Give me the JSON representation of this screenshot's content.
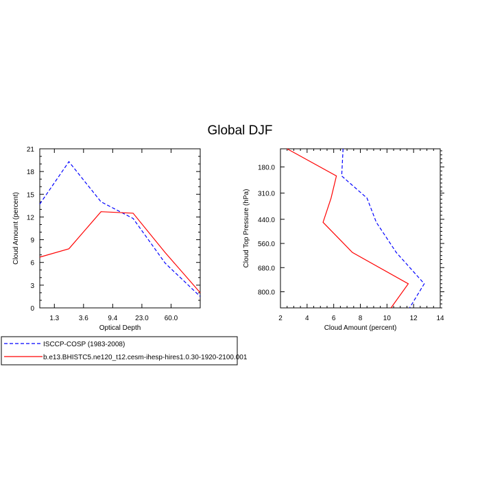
{
  "title": "Global DJF",
  "colors": {
    "obs": "#0000ff",
    "model": "#ff0000",
    "axis": "#000000"
  },
  "chart_data": [
    {
      "type": "line",
      "xlabel": "Optical Depth",
      "ylabel": "Cloud Amount (percent)",
      "x_tick_labels": [
        "1.3",
        "3.6",
        "9.4",
        "23.0",
        "60.0"
      ],
      "xlim": [
        0,
        5.5
      ],
      "ylim": [
        0,
        21
      ],
      "y_ticks": [
        0,
        3,
        6,
        9,
        12,
        15,
        18,
        21
      ],
      "series": [
        {
          "name": "ISCCP-COSP (1983-2008)",
          "style": "dashed",
          "x": [
            0,
            1,
            2.1,
            3.2,
            4.3,
            5.5
          ],
          "y": [
            13.7,
            19.3,
            14.0,
            11.8,
            5.9,
            1.5
          ]
        },
        {
          "name": "b.e13.BHISTC5.ne120_t12.cesm-ihesp-hires1.0.30-1920-2100.001",
          "style": "solid",
          "x": [
            0,
            1,
            2.1,
            3.2,
            4.3,
            5.5
          ],
          "y": [
            6.7,
            7.8,
            12.7,
            12.5,
            7.3,
            2.0
          ]
        }
      ]
    },
    {
      "type": "line",
      "xlabel": "Cloud Amount (percent)",
      "ylabel": "Cloud Top Pressure (hPa)",
      "x_ticks": [
        2,
        4,
        6,
        8,
        10,
        12,
        14
      ],
      "xlim": [
        2,
        14
      ],
      "ylim": [
        90,
        880
      ],
      "y_ticks": [
        180,
        310,
        440,
        560,
        680,
        800
      ],
      "y_tick_labels": [
        "180.0",
        "310.0",
        "440.0",
        "560.0",
        "680.0",
        "800.0"
      ],
      "y_reversed": true,
      "series": [
        {
          "name": "ISCCP-COSP (1983-2008)",
          "style": "dashed",
          "x": [
            6.7,
            6.6,
            8.5,
            9.2,
            10.7,
            12.8,
            11.7
          ],
          "y": [
            90,
            225,
            335,
            455,
            605,
            760,
            880
          ]
        },
        {
          "name": "b.e13.BHISTC5.ne120_t12.cesm-ihesp-hires1.0.30-1920-2100.001",
          "style": "solid",
          "x": [
            2.5,
            6.2,
            5.8,
            5.2,
            7.4,
            11.6,
            10.3
          ],
          "y": [
            90,
            225,
            335,
            455,
            605,
            760,
            880
          ]
        }
      ]
    }
  ],
  "legend": {
    "placement": "bottom-left",
    "entries": [
      {
        "label": "ISCCP-COSP (1983-2008)",
        "style": "dashed"
      },
      {
        "label": "b.e13.BHISTC5.ne120_t12.cesm-ihesp-hires1.0.30-1920-2100.001",
        "style": "solid"
      }
    ]
  }
}
